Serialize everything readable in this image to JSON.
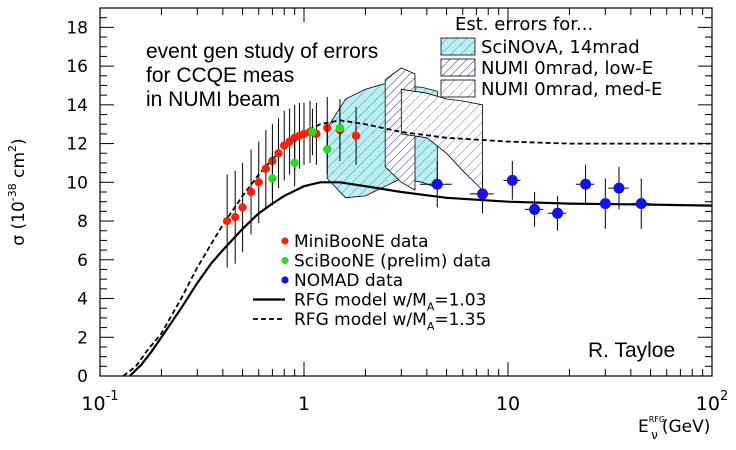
{
  "chart_data": {
    "type": "scatter",
    "title": "",
    "xlabel": {
      "base": "E",
      "sup": "RFG",
      "sub": "ν",
      "unit": "(GeV)"
    },
    "ylabel": {
      "main": "σ (10",
      "exp": "-38",
      "unit": " cm",
      "unit_exp": "2",
      "close": ")"
    },
    "xscale": "log",
    "xlim": [
      0.1,
      100
    ],
    "ylim": [
      0,
      19
    ],
    "yticks": [
      "0",
      "2",
      "4",
      "6",
      "8",
      "10",
      "12",
      "14",
      "16",
      "18"
    ],
    "xticks": [
      {
        "base": "10",
        "exp": "-1",
        "value": 0.1
      },
      {
        "base": "1",
        "exp": "",
        "value": 1
      },
      {
        "base": "10",
        "exp": "",
        "value": 10
      },
      {
        "base": "10",
        "exp": "2",
        "value": 100
      }
    ],
    "annotation": {
      "lines": [
        "event gen study of errors",
        "for CCQE meas",
        "in NUMI beam"
      ]
    },
    "author": "R. Tayloe",
    "error_legend": {
      "title": "Est. errors for...",
      "entries": [
        {
          "label": "SciNOvA, 14mrad",
          "fill": "#bff0f0",
          "hatch": "#3aa5cc"
        },
        {
          "label": "NUMI 0mrad, low-E",
          "fill": "#ffffff",
          "hatch": "#3333aa"
        },
        {
          "label": "NUMI 0mrad, med-E",
          "fill": "#ffffff",
          "hatch": "#7777c8"
        }
      ]
    },
    "legend": [
      {
        "label": "MiniBooNE data",
        "kind": "marker",
        "color": "#ff2200"
      },
      {
        "label": "SciBooNE (prelim) data",
        "kind": "marker",
        "color": "#22dd22"
      },
      {
        "label": "NOMAD data",
        "kind": "marker",
        "color": "#1111ee"
      },
      {
        "label": "RFG model w/M",
        "sub": "A",
        "value": "=1.03",
        "kind": "solid"
      },
      {
        "label": "RFG model w/M",
        "sub": "A",
        "value": "=1.35",
        "kind": "dashed"
      }
    ],
    "series": [
      {
        "name": "MiniBooNE data",
        "color": "#ff2200",
        "x": [
          0.42,
          0.46,
          0.5,
          0.55,
          0.6,
          0.65,
          0.7,
          0.75,
          0.8,
          0.85,
          0.9,
          0.95,
          1.0,
          1.07,
          1.15,
          1.3,
          1.5,
          1.8
        ],
        "y": [
          8.0,
          8.2,
          8.7,
          9.5,
          10.0,
          10.7,
          11.1,
          11.5,
          11.9,
          12.1,
          12.3,
          12.4,
          12.5,
          12.6,
          12.5,
          12.8,
          12.7,
          12.4
        ],
        "yerr": [
          2.4,
          2.4,
          2.3,
          2.2,
          2.1,
          2.0,
          1.9,
          1.8,
          1.8,
          1.7,
          1.7,
          1.7,
          1.6,
          1.6,
          1.6,
          1.6,
          1.6,
          1.5
        ]
      },
      {
        "name": "SciBooNE (prelim) data",
        "color": "#22dd22",
        "x": [
          0.7,
          0.9,
          1.1,
          1.3,
          1.5
        ],
        "y": [
          10.2,
          11.0,
          12.6,
          11.7,
          12.8
        ],
        "yerr": [
          1.4,
          1.2,
          1.2,
          1.3,
          1.1
        ]
      },
      {
        "name": "NOMAD data",
        "color": "#1111ee",
        "x": [
          4.5,
          7.5,
          10.5,
          13.5,
          17.5,
          24.0,
          30.0,
          35.0,
          45.0
        ],
        "y": [
          9.9,
          9.4,
          10.1,
          8.6,
          8.4,
          9.9,
          8.9,
          9.7,
          8.9
        ],
        "yerr": [
          1.2,
          1.0,
          1.0,
          0.9,
          0.9,
          1.0,
          1.3,
          1.1,
          1.3
        ],
        "xerr": [
          0.8,
          1.0,
          1.0,
          1.4,
          1.8,
          2.5,
          3.0,
          4.0,
          5.0
        ]
      }
    ],
    "curves": [
      {
        "name": "RFG model w/MA=1.03",
        "style": "solid",
        "x": [
          0.14,
          0.16,
          0.18,
          0.2,
          0.25,
          0.3,
          0.35,
          0.4,
          0.5,
          0.6,
          0.7,
          0.8,
          1.0,
          1.2,
          1.5,
          2.0,
          3.0,
          5.0,
          10.0,
          20.0,
          50.0,
          100.0
        ],
        "y": [
          0.0,
          0.6,
          1.3,
          2.0,
          3.5,
          4.8,
          5.8,
          6.5,
          7.6,
          8.4,
          8.9,
          9.3,
          9.8,
          10.0,
          10.0,
          9.8,
          9.5,
          9.2,
          9.0,
          8.9,
          8.85,
          8.8
        ]
      },
      {
        "name": "RFG model w/MA=1.35",
        "style": "dashed",
        "x": [
          0.13,
          0.15,
          0.17,
          0.2,
          0.25,
          0.3,
          0.35,
          0.4,
          0.5,
          0.6,
          0.7,
          0.8,
          1.0,
          1.2,
          1.5,
          2.0,
          3.0,
          5.0,
          10.0,
          20.0,
          50.0,
          100.0
        ],
        "y": [
          0.0,
          0.5,
          1.3,
          2.2,
          4.0,
          5.6,
          6.8,
          7.8,
          9.3,
          10.4,
          11.2,
          11.8,
          12.6,
          13.0,
          13.2,
          13.0,
          12.6,
          12.3,
          12.1,
          12.0,
          12.0,
          12.0
        ]
      }
    ],
    "error_bands": [
      {
        "name": "SciNOvA, 14mrad",
        "fill": "#bff0f0",
        "hatch": "#3aa5cc",
        "x": [
          1.3,
          1.6,
          2.0,
          2.5,
          3.0,
          3.8,
          4.5
        ],
        "upper": [
          12.8,
          14.3,
          14.8,
          15.1,
          15.0,
          14.9,
          14.7
        ],
        "lower": [
          10.2,
          9.2,
          9.3,
          9.8,
          10.2,
          10.0,
          9.7
        ]
      },
      {
        "name": "NUMI 0mrad, low-E",
        "fill": "#ffffff",
        "hatch": "#3333aa",
        "x": [
          2.5,
          3.0,
          3.5
        ],
        "upper": [
          15.3,
          15.9,
          15.6
        ],
        "lower": [
          10.8,
          10.0,
          9.6
        ]
      },
      {
        "name": "NUMI 0mrad, med-E",
        "fill": "#ffffff",
        "hatch": "#7777c8",
        "x": [
          3.0,
          4.0,
          5.0,
          6.0,
          7.5
        ],
        "upper": [
          14.8,
          14.6,
          14.3,
          14.2,
          14.0
        ],
        "lower": [
          12.5,
          12.3,
          11.5,
          10.6,
          9.6
        ]
      }
    ]
  }
}
